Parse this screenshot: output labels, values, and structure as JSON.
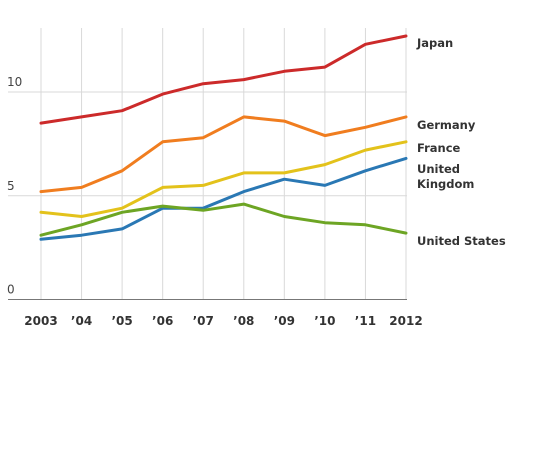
{
  "chart_data": {
    "type": "line",
    "title": "",
    "xlabel": "",
    "ylabel": "",
    "categories": [
      "2003",
      "’04",
      "’05",
      "’06",
      "’07",
      "’08",
      "’09",
      "’10",
      "’11",
      "2012"
    ],
    "y_ticks": [
      "0",
      "5",
      "10"
    ],
    "ylim": [
      0,
      13
    ],
    "grid": true,
    "legend": "direct labels at right end of lines",
    "series": [
      {
        "name": "Japan",
        "label_lines": [
          "Japan"
        ],
        "color": "#cc2a2a",
        "values": [
          8.5,
          8.8,
          9.1,
          9.9,
          10.4,
          10.6,
          11.0,
          11.2,
          12.3,
          12.7
        ]
      },
      {
        "name": "Germany",
        "label_lines": [
          "Germany"
        ],
        "color": "#f07d1f",
        "values": [
          5.2,
          5.4,
          6.2,
          7.6,
          7.8,
          8.8,
          8.6,
          7.9,
          8.3,
          8.8
        ]
      },
      {
        "name": "France",
        "label_lines": [
          "France"
        ],
        "color": "#e3c21b",
        "values": [
          4.2,
          4.0,
          4.4,
          5.4,
          5.5,
          6.1,
          6.1,
          6.5,
          7.2,
          7.6
        ]
      },
      {
        "name": "United Kingdom",
        "label_lines": [
          "United",
          "Kingdom"
        ],
        "color": "#2a78b4",
        "values": [
          2.9,
          3.1,
          3.4,
          4.4,
          4.4,
          5.2,
          5.8,
          5.5,
          6.2,
          6.8
        ]
      },
      {
        "name": "United States",
        "label_lines": [
          "United States"
        ],
        "color": "#6da524",
        "values": [
          3.1,
          3.6,
          4.2,
          4.5,
          4.3,
          4.6,
          4.0,
          3.7,
          3.6,
          3.2
        ]
      }
    ]
  }
}
